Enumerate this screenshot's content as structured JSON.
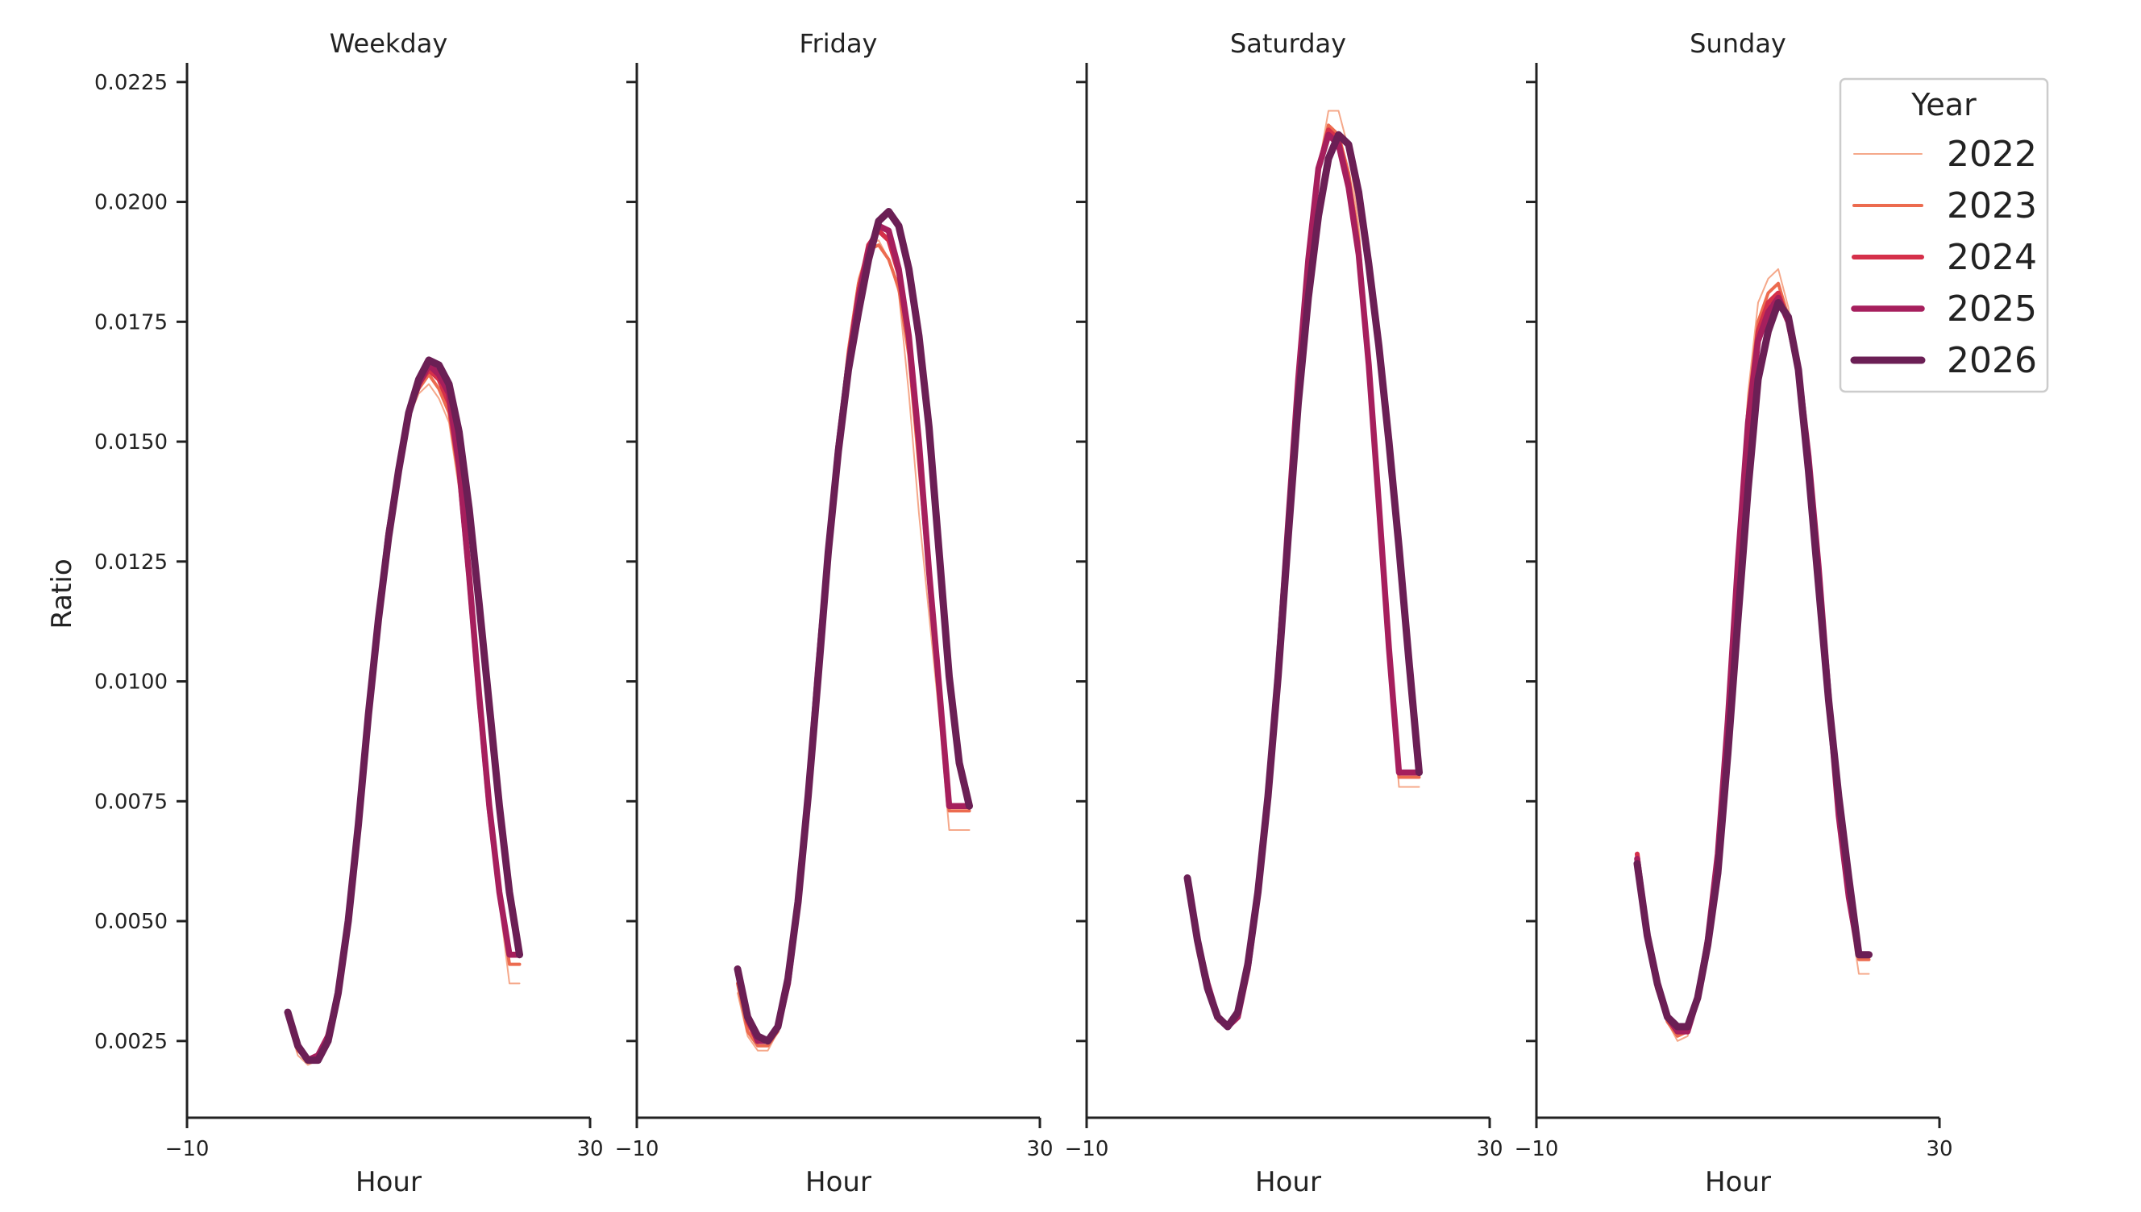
{
  "chart_data": {
    "type": "line",
    "y_label": "Ratio",
    "x_label": "Hour",
    "ylim": [
      0.0009,
      0.0229
    ],
    "xlim": [
      -10,
      30
    ],
    "y_ticks": [
      "0.0025",
      "0.0050",
      "0.0075",
      "0.0100",
      "0.0125",
      "0.0150",
      "0.0175",
      "0.0200",
      "0.0225"
    ],
    "x_ticks": [
      "−10",
      "30"
    ],
    "legend": {
      "title": "Year",
      "position": "top-right"
    },
    "years": [
      {
        "name": "2022",
        "color": "#f5a88a",
        "width": 2
      },
      {
        "name": "2023",
        "color": "#ec6b4f",
        "width": 4
      },
      {
        "name": "2024",
        "color": "#d5304a",
        "width": 6
      },
      {
        "name": "2025",
        "color": "#a61f5d",
        "width": 7.5
      },
      {
        "name": "2026",
        "color": "#6b1f55",
        "width": 9
      }
    ],
    "panels": [
      {
        "title": "Weekday",
        "x": [
          0,
          1,
          2,
          3,
          4,
          5,
          6,
          7,
          8,
          9,
          10,
          11,
          12,
          13,
          14,
          15,
          16,
          17,
          18,
          19,
          20,
          21,
          22,
          23
        ],
        "series": [
          {
            "name": "2022",
            "values": [
              0.0029,
              0.0022,
              0.002,
              0.0021,
              0.0027,
              0.0036,
              0.005,
              0.007,
              0.0093,
              0.0113,
              0.0131,
              0.0144,
              0.0155,
              0.016,
              0.0162,
              0.0159,
              0.0154,
              0.014,
              0.0118,
              0.0093,
              0.0071,
              0.0054,
              0.0037,
              0.0037
            ]
          },
          {
            "name": "2023",
            "values": [
              0.003,
              0.0023,
              0.0021,
              0.0021,
              0.0027,
              0.0036,
              0.005,
              0.007,
              0.0093,
              0.0113,
              0.0131,
              0.0144,
              0.0156,
              0.0161,
              0.0164,
              0.0161,
              0.0156,
              0.0142,
              0.012,
              0.0095,
              0.0072,
              0.0055,
              0.0041,
              0.0041
            ]
          },
          {
            "name": "2024",
            "values": [
              0.0031,
              0.0024,
              0.0021,
              0.0022,
              0.0026,
              0.0035,
              0.005,
              0.007,
              0.0093,
              0.0113,
              0.0131,
              0.0144,
              0.0156,
              0.0162,
              0.0165,
              0.0163,
              0.0158,
              0.0144,
              0.0121,
              0.0096,
              0.0073,
              0.0056,
              0.0043,
              0.0043
            ]
          },
          {
            "name": "2025",
            "values": [
              0.0031,
              0.0024,
              0.0021,
              0.0022,
              0.0026,
              0.0035,
              0.005,
              0.007,
              0.0093,
              0.0113,
              0.0131,
              0.0144,
              0.0156,
              0.0162,
              0.0166,
              0.0164,
              0.016,
              0.0145,
              0.0122,
              0.0097,
              0.0074,
              0.0056,
              0.0043,
              0.0043
            ]
          },
          {
            "name": "2026",
            "values": [
              0.0031,
              0.0024,
              0.0021,
              0.0021,
              0.0025,
              0.0035,
              0.005,
              0.007,
              0.0093,
              0.0113,
              0.013,
              0.0144,
              0.0156,
              0.0163,
              0.0167,
              0.0166,
              0.0162,
              0.0152,
              0.0136,
              0.0116,
              0.0095,
              0.0074,
              0.0056,
              0.0043
            ]
          }
        ]
      },
      {
        "title": "Friday",
        "x": [
          0,
          1,
          2,
          3,
          4,
          5,
          6,
          7,
          8,
          9,
          10,
          11,
          12,
          13,
          14,
          15,
          16,
          17,
          18,
          19,
          20,
          21,
          22,
          23
        ],
        "series": [
          {
            "name": "2022",
            "values": [
              0.0035,
              0.0026,
              0.0023,
              0.0023,
              0.0027,
              0.0037,
              0.0054,
              0.0076,
              0.0103,
              0.0127,
              0.015,
              0.017,
              0.0184,
              0.0191,
              0.0192,
              0.0188,
              0.0181,
              0.016,
              0.0135,
              0.0114,
              0.0093,
              0.0069,
              0.0069,
              0.0069
            ]
          },
          {
            "name": "2023",
            "values": [
              0.0037,
              0.0027,
              0.0024,
              0.0024,
              0.0027,
              0.0037,
              0.0054,
              0.0076,
              0.0103,
              0.0127,
              0.015,
              0.0169,
              0.0183,
              0.019,
              0.0191,
              0.0188,
              0.0182,
              0.0168,
              0.0145,
              0.0121,
              0.0097,
              0.0073,
              0.0073,
              0.0073
            ]
          },
          {
            "name": "2024",
            "values": [
              0.0039,
              0.0029,
              0.0025,
              0.0025,
              0.0028,
              0.0037,
              0.0054,
              0.0076,
              0.0103,
              0.0127,
              0.0149,
              0.0167,
              0.0181,
              0.0191,
              0.0194,
              0.0192,
              0.0185,
              0.0171,
              0.0149,
              0.0122,
              0.0098,
              0.0074,
              0.0074,
              0.0074
            ]
          },
          {
            "name": "2025",
            "values": [
              0.004,
              0.003,
              0.0025,
              0.0025,
              0.0028,
              0.0037,
              0.0054,
              0.0076,
              0.0103,
              0.0127,
              0.0149,
              0.0166,
              0.018,
              0.019,
              0.0195,
              0.0194,
              0.0186,
              0.0172,
              0.015,
              0.0123,
              0.0099,
              0.0074,
              0.0074,
              0.0074
            ]
          },
          {
            "name": "2026",
            "values": [
              0.004,
              0.003,
              0.0026,
              0.0025,
              0.0028,
              0.0038,
              0.0054,
              0.0076,
              0.0101,
              0.0127,
              0.0148,
              0.0165,
              0.0177,
              0.0188,
              0.0196,
              0.0198,
              0.0195,
              0.0186,
              0.0172,
              0.0153,
              0.0127,
              0.0101,
              0.0083,
              0.0074
            ]
          }
        ]
      },
      {
        "title": "Saturday",
        "x": [
          0,
          1,
          2,
          3,
          4,
          5,
          6,
          7,
          8,
          9,
          10,
          11,
          12,
          13,
          14,
          15,
          16,
          17,
          18,
          19,
          20,
          21,
          22,
          23
        ],
        "series": [
          {
            "name": "2022",
            "values": [
              0.0056,
              0.0043,
              0.0035,
              0.0029,
              0.0028,
              0.003,
              0.004,
              0.0056,
              0.0076,
              0.0102,
              0.0133,
              0.0163,
              0.0188,
              0.0207,
              0.0219,
              0.0219,
              0.0211,
              0.0195,
              0.0167,
              0.0135,
              0.0105,
              0.0078,
              0.0078,
              0.0078
            ]
          },
          {
            "name": "2023",
            "values": [
              0.0058,
              0.0044,
              0.0036,
              0.003,
              0.0028,
              0.003,
              0.004,
              0.0056,
              0.0076,
              0.0102,
              0.0133,
              0.0163,
              0.0188,
              0.0207,
              0.0216,
              0.0214,
              0.0206,
              0.0192,
              0.0166,
              0.0136,
              0.0106,
              0.008,
              0.008,
              0.008
            ]
          },
          {
            "name": "2024",
            "values": [
              0.0059,
              0.0045,
              0.0037,
              0.003,
              0.0028,
              0.003,
              0.004,
              0.0056,
              0.0076,
              0.0102,
              0.0133,
              0.0163,
              0.0188,
              0.0207,
              0.0215,
              0.0213,
              0.0204,
              0.019,
              0.0166,
              0.0137,
              0.0107,
              0.0081,
              0.0081,
              0.0081
            ]
          },
          {
            "name": "2025",
            "values": [
              0.0059,
              0.0046,
              0.0037,
              0.003,
              0.0028,
              0.003,
              0.004,
              0.0056,
              0.0076,
              0.0102,
              0.0133,
              0.0163,
              0.0188,
              0.0207,
              0.0214,
              0.0212,
              0.0203,
              0.0189,
              0.0166,
              0.0137,
              0.0107,
              0.0081,
              0.0081,
              0.0081
            ]
          },
          {
            "name": "2026",
            "values": [
              0.0059,
              0.0046,
              0.0036,
              0.003,
              0.0028,
              0.0031,
              0.0041,
              0.0056,
              0.0076,
              0.0101,
              0.013,
              0.0158,
              0.018,
              0.0197,
              0.0209,
              0.0214,
              0.0212,
              0.0202,
              0.0187,
              0.017,
              0.015,
              0.0128,
              0.0104,
              0.0081
            ]
          }
        ]
      },
      {
        "title": "Sunday",
        "x": [
          0,
          1,
          2,
          3,
          4,
          5,
          6,
          7,
          8,
          9,
          10,
          11,
          12,
          13,
          14,
          15,
          16,
          17,
          18,
          19,
          20,
          21,
          22,
          23
        ],
        "series": [
          {
            "name": "2022",
            "values": [
              0.0062,
              0.0046,
              0.0035,
              0.0029,
              0.0025,
              0.0026,
              0.0033,
              0.0046,
              0.0064,
              0.0092,
              0.0127,
              0.016,
              0.0179,
              0.0184,
              0.0186,
              0.0178,
              0.0165,
              0.0148,
              0.0123,
              0.0096,
              0.0071,
              0.0053,
              0.0039,
              0.0039
            ]
          },
          {
            "name": "2023",
            "values": [
              0.0063,
              0.0047,
              0.0036,
              0.0029,
              0.0026,
              0.0027,
              0.0034,
              0.0046,
              0.0064,
              0.0092,
              0.0126,
              0.0157,
              0.0175,
              0.0181,
              0.0183,
              0.0176,
              0.0165,
              0.0147,
              0.0123,
              0.0096,
              0.0071,
              0.0054,
              0.0042,
              0.0042
            ]
          },
          {
            "name": "2024",
            "values": [
              0.0064,
              0.0047,
              0.0036,
              0.003,
              0.0027,
              0.0027,
              0.0034,
              0.0046,
              0.0064,
              0.0092,
              0.0125,
              0.0155,
              0.0173,
              0.0179,
              0.0181,
              0.0175,
              0.0165,
              0.0147,
              0.0124,
              0.0097,
              0.0072,
              0.0055,
              0.0043,
              0.0043
            ]
          },
          {
            "name": "2025",
            "values": [
              0.0063,
              0.0047,
              0.0037,
              0.003,
              0.0027,
              0.0027,
              0.0034,
              0.0046,
              0.0064,
              0.0092,
              0.0125,
              0.0154,
              0.0171,
              0.0177,
              0.018,
              0.0175,
              0.0165,
              0.0147,
              0.0124,
              0.0097,
              0.0072,
              0.0055,
              0.0043,
              0.0043
            ]
          },
          {
            "name": "2026",
            "values": [
              0.0062,
              0.0047,
              0.0037,
              0.003,
              0.0028,
              0.0028,
              0.0034,
              0.0045,
              0.006,
              0.0085,
              0.0113,
              0.014,
              0.0163,
              0.0173,
              0.0179,
              0.0176,
              0.0165,
              0.0144,
              0.012,
              0.0096,
              0.0076,
              0.0059,
              0.0043,
              0.0043
            ]
          }
        ]
      }
    ]
  }
}
